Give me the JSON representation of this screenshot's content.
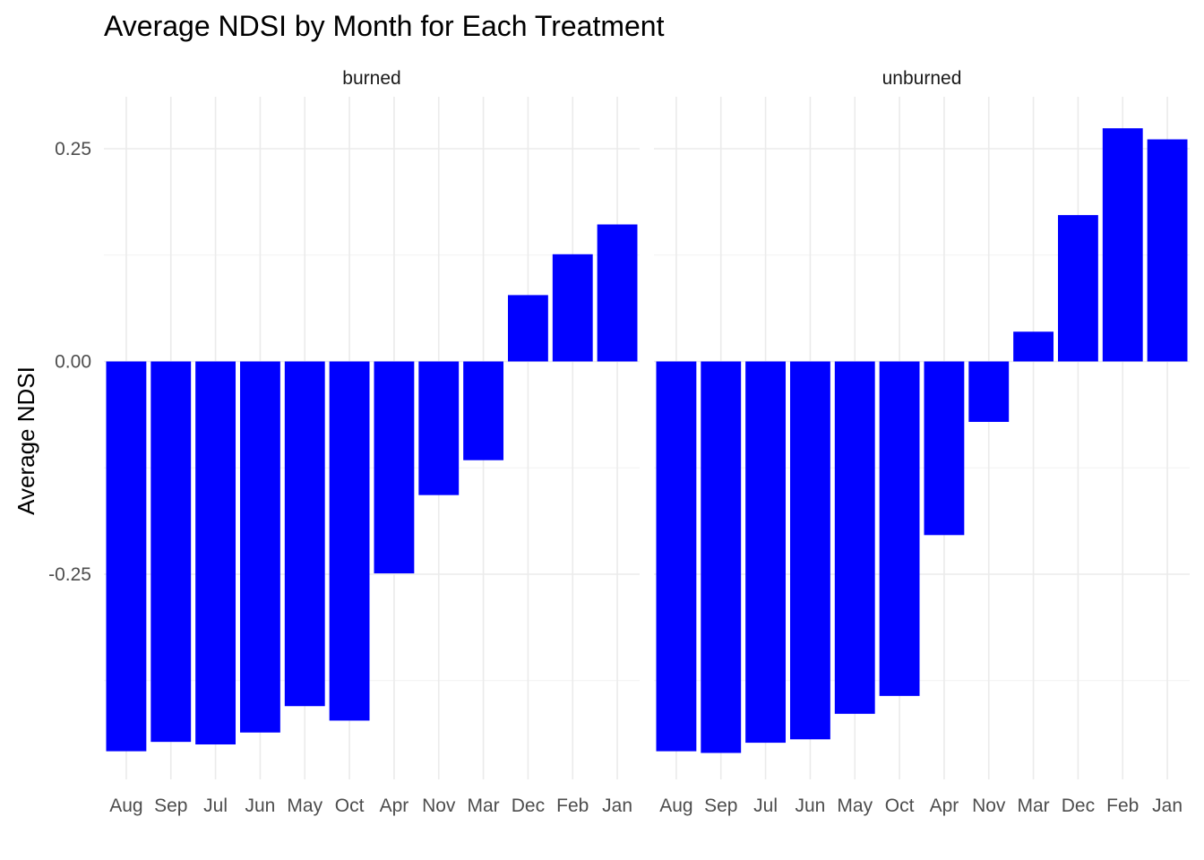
{
  "chart_data": {
    "type": "bar",
    "title": "Average NDSI by Month for Each Treatment",
    "xlabel": "",
    "ylabel": "Average NDSI",
    "ylim": [
      -0.5,
      0.3
    ],
    "y_ticks": [
      0.25,
      0.0,
      -0.25
    ],
    "y_tick_labels": [
      "0.25",
      "0.00",
      "-0.25"
    ],
    "bar_color": "#0000ff",
    "grid": true,
    "facets": [
      {
        "name": "burned",
        "categories": [
          "Aug",
          "Sep",
          "Jul",
          "Jun",
          "May",
          "Oct",
          "Apr",
          "Nov",
          "Mar",
          "Dec",
          "Feb",
          "Jan"
        ],
        "values": [
          -0.458,
          -0.447,
          -0.45,
          -0.436,
          -0.405,
          -0.422,
          -0.249,
          -0.157,
          -0.116,
          0.078,
          0.126,
          0.161
        ]
      },
      {
        "name": "unburned",
        "categories": [
          "Aug",
          "Sep",
          "Jul",
          "Jun",
          "May",
          "Oct",
          "Apr",
          "Nov",
          "Mar",
          "Dec",
          "Feb",
          "Jan"
        ],
        "values": [
          -0.458,
          -0.46,
          -0.448,
          -0.444,
          -0.414,
          -0.393,
          -0.204,
          -0.071,
          0.035,
          0.172,
          0.274,
          0.261
        ]
      }
    ]
  }
}
